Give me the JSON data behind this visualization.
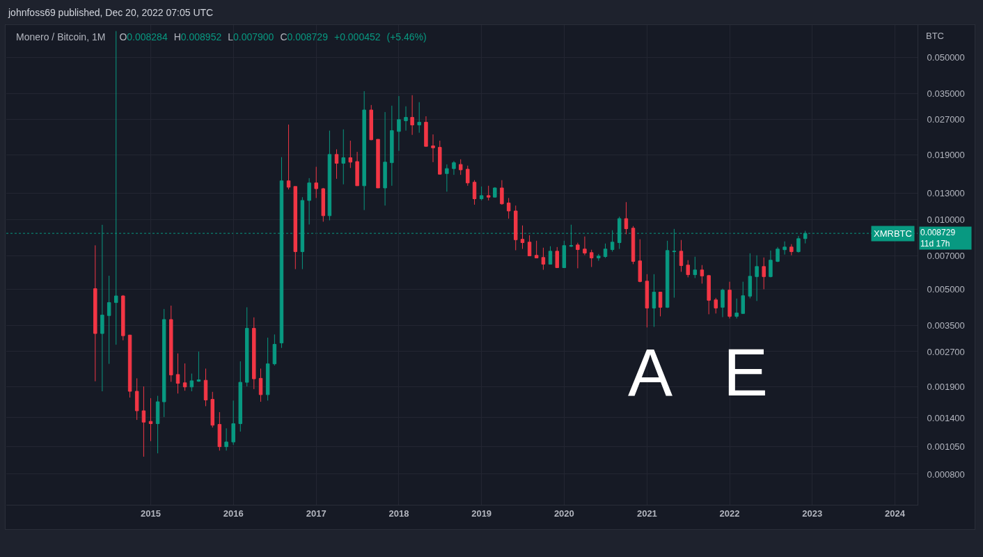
{
  "chart_data": {
    "type": "candlestick",
    "title": "Monero / Bitcoin, 1M",
    "subtitle": "O0.008284 H0.008952 L0.007900 C0.008729 +0.000452 (+5.46%)",
    "ylabel": "BTC",
    "annotations": [
      "johnfoss69 published, Dec 20, 2022 07:05 UTC",
      "0.008729",
      "11d 17h",
      "A",
      "E"
    ],
    "x": [
      "2014-05",
      "2014-06",
      "2014-07",
      "2014-08",
      "2014-09",
      "2014-10",
      "2014-11",
      "2014-12",
      "2015-01",
      "2015-02",
      "2015-03",
      "2015-04",
      "2015-05",
      "2015-06",
      "2015-07",
      "2015-08",
      "2015-09",
      "2015-10",
      "2015-11",
      "2015-12",
      "2016-01",
      "2016-02",
      "2016-03",
      "2016-04",
      "2016-05",
      "2016-06",
      "2016-07",
      "2016-08",
      "2016-09",
      "2016-10",
      "2016-11",
      "2016-12",
      "2017-01",
      "2017-02",
      "2017-03",
      "2017-04",
      "2017-05",
      "2017-06",
      "2017-07",
      "2017-08",
      "2017-09",
      "2017-10",
      "2017-11",
      "2017-12",
      "2018-01",
      "2018-02",
      "2018-03",
      "2018-04",
      "2018-05",
      "2018-06",
      "2018-07",
      "2018-08",
      "2018-09",
      "2018-10",
      "2018-11",
      "2018-12",
      "2019-01",
      "2019-02",
      "2019-03",
      "2019-04",
      "2019-05",
      "2019-06",
      "2019-07",
      "2019-08",
      "2019-09",
      "2019-10",
      "2019-11",
      "2019-12",
      "2020-01",
      "2020-02",
      "2020-03",
      "2020-04",
      "2020-05",
      "2020-06",
      "2020-07",
      "2020-08",
      "2020-09",
      "2020-10",
      "2020-11",
      "2020-12",
      "2021-01",
      "2021-02",
      "2021-03",
      "2021-04",
      "2021-05",
      "2021-06",
      "2021-07",
      "2021-08",
      "2021-09",
      "2021-10",
      "2021-11",
      "2021-12",
      "2022-01",
      "2022-02",
      "2022-03",
      "2022-04",
      "2022-05",
      "2022-06",
      "2022-07",
      "2022-08",
      "2022-09",
      "2022-10",
      "2022-11",
      "2022-12"
    ],
    "ohlc": [
      [
        0.00504,
        0.00775,
        0.00201,
        0.00323
      ],
      [
        0.00323,
        0.0095,
        0.00182,
        0.00388
      ],
      [
        0.00386,
        0.00573,
        0.00239,
        0.00439
      ],
      [
        0.00439,
        0.065,
        0.00289,
        0.00469
      ],
      [
        0.00469,
        0.00473,
        0.00302,
        0.00316
      ],
      [
        0.00318,
        0.00319,
        0.00171,
        0.00182
      ],
      [
        0.00182,
        0.00207,
        0.00137,
        0.0015
      ],
      [
        0.0015,
        0.00191,
        0.000951,
        0.00134
      ],
      [
        0.00135,
        0.0017,
        0.00111,
        0.00132
      ],
      [
        0.00132,
        0.00174,
        0.000983,
        0.00164
      ],
      [
        0.00164,
        0.00412,
        0.00141,
        0.00371
      ],
      [
        0.00371,
        0.00426,
        0.002,
        0.00214
      ],
      [
        0.00215,
        0.00265,
        0.00178,
        0.00197
      ],
      [
        0.00198,
        0.0024,
        0.00183,
        0.0019
      ],
      [
        0.0019,
        0.00217,
        0.00182,
        0.00202
      ],
      [
        0.00201,
        0.0027,
        0.002,
        0.00204
      ],
      [
        0.00203,
        0.00228,
        0.00157,
        0.00167
      ],
      [
        0.00168,
        0.00181,
        0.00127,
        0.0013
      ],
      [
        0.00131,
        0.00148,
        0.00101,
        0.00105
      ],
      [
        0.00105,
        0.00126,
        0.00101,
        0.0011
      ],
      [
        0.0011,
        0.00166,
        0.00107,
        0.00132
      ],
      [
        0.00132,
        0.00245,
        0.00122,
        0.00199
      ],
      [
        0.00199,
        0.00419,
        0.00191,
        0.0034
      ],
      [
        0.0034,
        0.00379,
        0.00186,
        0.00206
      ],
      [
        0.00207,
        0.00228,
        0.00164,
        0.00176
      ],
      [
        0.00176,
        0.0031,
        0.00166,
        0.00239
      ],
      [
        0.00239,
        0.0032,
        0.00235,
        0.0029
      ],
      [
        0.00294,
        0.0186,
        0.0028,
        0.0147
      ],
      [
        0.0147,
        0.0257,
        0.0135,
        0.0138
      ],
      [
        0.0139,
        0.0139,
        0.00612,
        0.00728
      ],
      [
        0.00728,
        0.0125,
        0.00612,
        0.0121
      ],
      [
        0.0121,
        0.0151,
        0.00953,
        0.0144
      ],
      [
        0.0144,
        0.0169,
        0.0124,
        0.0136
      ],
      [
        0.0136,
        0.0137,
        0.0098,
        0.0104
      ],
      [
        0.0104,
        0.0242,
        0.00993,
        0.0191
      ],
      [
        0.0191,
        0.0201,
        0.015,
        0.0175
      ],
      [
        0.0175,
        0.0245,
        0.0142,
        0.0185
      ],
      [
        0.0185,
        0.0219,
        0.0167,
        0.0177
      ],
      [
        0.0178,
        0.0196,
        0.014,
        0.014
      ],
      [
        0.014,
        0.0358,
        0.011,
        0.0297
      ],
      [
        0.0297,
        0.0312,
        0.022,
        0.0221
      ],
      [
        0.0222,
        0.0222,
        0.0137,
        0.0137
      ],
      [
        0.0137,
        0.0291,
        0.0115,
        0.0177
      ],
      [
        0.0176,
        0.031,
        0.014,
        0.0242
      ],
      [
        0.024,
        0.0341,
        0.0198,
        0.027
      ],
      [
        0.0267,
        0.0308,
        0.0242,
        0.0276
      ],
      [
        0.0276,
        0.0344,
        0.0232,
        0.0256
      ],
      [
        0.0256,
        0.0321,
        0.0237,
        0.0263
      ],
      [
        0.0263,
        0.0279,
        0.0207,
        0.0207
      ],
      [
        0.0208,
        0.0233,
        0.0177,
        0.0204
      ],
      [
        0.0205,
        0.0219,
        0.0157,
        0.0157
      ],
      [
        0.0158,
        0.0173,
        0.0132,
        0.0166
      ],
      [
        0.0166,
        0.0179,
        0.0156,
        0.0176
      ],
      [
        0.0173,
        0.0182,
        0.0156,
        0.0164
      ],
      [
        0.0165,
        0.0171,
        0.014,
        0.0144
      ],
      [
        0.0145,
        0.0148,
        0.0116,
        0.0123
      ],
      [
        0.0123,
        0.0139,
        0.0121,
        0.0127
      ],
      [
        0.0127,
        0.014,
        0.0121,
        0.0125
      ],
      [
        0.0125,
        0.0138,
        0.0125,
        0.0137
      ],
      [
        0.0137,
        0.0148,
        0.0116,
        0.0117
      ],
      [
        0.0118,
        0.0124,
        0.0101,
        0.0109
      ],
      [
        0.0109,
        0.0115,
        0.00738,
        0.00819
      ],
      [
        0.00823,
        0.00944,
        0.00748,
        0.00796
      ],
      [
        0.008,
        0.00857,
        0.00698,
        0.00698
      ],
      [
        0.00702,
        0.00811,
        0.00684,
        0.00684
      ],
      [
        0.00687,
        0.00757,
        0.00608,
        0.00643
      ],
      [
        0.00643,
        0.00768,
        0.00643,
        0.00731
      ],
      [
        0.00731,
        0.00762,
        0.00621,
        0.00621
      ],
      [
        0.00621,
        0.00811,
        0.00621,
        0.00773
      ],
      [
        0.00768,
        0.00951,
        0.00762,
        0.00773
      ],
      [
        0.00778,
        0.00795,
        0.00617,
        0.00743
      ],
      [
        0.00747,
        0.00846,
        0.00703,
        0.00718
      ],
      [
        0.00721,
        0.00742,
        0.00625,
        0.00684
      ],
      [
        0.00684,
        0.00711,
        0.00665,
        0.00697
      ],
      [
        0.00693,
        0.00789,
        0.00684,
        0.00747
      ],
      [
        0.00743,
        0.009,
        0.00728,
        0.008
      ],
      [
        0.00796,
        0.0103,
        0.00748,
        0.0101
      ],
      [
        0.0101,
        0.0119,
        0.00865,
        0.00914
      ],
      [
        0.00919,
        0.00938,
        0.00643,
        0.00661
      ],
      [
        0.00664,
        0.00823,
        0.00537,
        0.00541
      ],
      [
        0.00543,
        0.00582,
        0.00343,
        0.00416
      ],
      [
        0.00416,
        0.00582,
        0.00345,
        0.00487
      ],
      [
        0.00487,
        0.00487,
        0.00383,
        0.00419
      ],
      [
        0.00419,
        0.00811,
        0.00416,
        0.00736
      ],
      [
        0.00728,
        0.00912,
        0.00461,
        0.00731
      ],
      [
        0.00731,
        0.00817,
        0.00596,
        0.00634
      ],
      [
        0.00637,
        0.00669,
        0.00564,
        0.00579
      ],
      [
        0.00579,
        0.00692,
        0.0056,
        0.00607
      ],
      [
        0.00607,
        0.00637,
        0.0053,
        0.00572
      ],
      [
        0.00574,
        0.00578,
        0.00391,
        0.00449
      ],
      [
        0.00451,
        0.0046,
        0.00394,
        0.00416
      ],
      [
        0.00419,
        0.00504,
        0.0038,
        0.00497
      ],
      [
        0.00497,
        0.0054,
        0.00375,
        0.00383
      ],
      [
        0.00383,
        0.00457,
        0.00375,
        0.00396
      ],
      [
        0.00394,
        0.0054,
        0.00394,
        0.0047
      ],
      [
        0.00468,
        0.00716,
        0.00458,
        0.0057
      ],
      [
        0.00568,
        0.00702,
        0.00446,
        0.00628
      ],
      [
        0.00628,
        0.00687,
        0.00501,
        0.00568
      ],
      [
        0.00568,
        0.00736,
        0.00564,
        0.00669
      ],
      [
        0.00661,
        0.00762,
        0.00656,
        0.00747
      ],
      [
        0.00742,
        0.00806,
        0.00707,
        0.00762
      ],
      [
        0.00762,
        0.00784,
        0.00702,
        0.00728
      ],
      [
        0.00728,
        0.00851,
        0.00721,
        0.00828
      ],
      [
        0.008284,
        0.008952,
        0.0079,
        0.008729
      ]
    ],
    "colors": [
      "#f23645",
      "#089981",
      "#089981",
      "#089981",
      "#f23645",
      "#f23645",
      "#f23645",
      "#f23645",
      "#f23645",
      "#089981",
      "#089981",
      "#f23645",
      "#f23645",
      "#f23645",
      "#089981",
      "#089981",
      "#f23645",
      "#f23645",
      "#f23645",
      "#089981",
      "#089981",
      "#089981",
      "#089981",
      "#f23645",
      "#f23645",
      "#089981",
      "#089981",
      "#089981",
      "#f23645",
      "#f23645",
      "#089981",
      "#089981",
      "#f23645",
      "#f23645",
      "#089981",
      "#f23645",
      "#089981",
      "#f23645",
      "#f23645",
      "#089981",
      "#f23645",
      "#f23645",
      "#089981",
      "#089981",
      "#089981",
      "#089981",
      "#f23645",
      "#089981",
      "#f23645",
      "#f23645",
      "#f23645",
      "#089981",
      "#089981",
      "#f23645",
      "#f23645",
      "#f23645",
      "#089981",
      "#f23645",
      "#089981",
      "#f23645",
      "#f23645",
      "#f23645",
      "#f23645",
      "#f23645",
      "#f23645",
      "#f23645",
      "#089981",
      "#f23645",
      "#089981",
      "#089981",
      "#f23645",
      "#f23645",
      "#f23645",
      "#089981",
      "#089981",
      "#089981",
      "#089981",
      "#f23645",
      "#f23645",
      "#f23645",
      "#f23645",
      "#089981",
      "#f23645",
      "#089981",
      "#089981",
      "#f23645",
      "#f23645",
      "#089981",
      "#f23645",
      "#f23645",
      "#f23645",
      "#089981",
      "#f23645",
      "#089981",
      "#089981",
      "#089981",
      "#089981",
      "#f23645",
      "#089981",
      "#089981",
      "#089981",
      "#f23645",
      "#089981",
      "#089981"
    ],
    "log": true,
    "grid": true,
    "xlim": [
      "2013-04-03",
      "2024-04-10"
    ],
    "xticks": [
      "2015",
      "2016",
      "2017",
      "2018",
      "2019",
      "2020",
      "2021",
      "2022",
      "2023",
      "2024"
    ],
    "ylim": [
      0.00059,
      0.069
    ],
    "yticks": [
      {
        "value": 0.0008,
        "label": "0.000800"
      },
      {
        "value": 0.00105,
        "label": "0.001050"
      },
      {
        "value": 0.0014,
        "label": "0.001400"
      },
      {
        "value": 0.0019,
        "label": "0.001900"
      },
      {
        "value": 0.0027,
        "label": "0.002700"
      },
      {
        "value": 0.0035,
        "label": "0.003500"
      },
      {
        "value": 0.005,
        "label": "0.005000"
      },
      {
        "value": 0.007,
        "label": "0.007000"
      },
      {
        "value": 0.01,
        "label": "0.010000"
      },
      {
        "value": 0.013,
        "label": "0.013000"
      },
      {
        "value": 0.019,
        "label": "0.019000"
      },
      {
        "value": 0.027,
        "label": "0.027000"
      },
      {
        "value": 0.035,
        "label": "0.035000"
      },
      {
        "value": 0.05,
        "label": "0.050000"
      }
    ],
    "ref_lines": [
      {
        "axis": "y",
        "value": 0.008729,
        "label": "XMRBTC",
        "color": "#089981",
        "line_style": "dotted"
      }
    ]
  }
}
